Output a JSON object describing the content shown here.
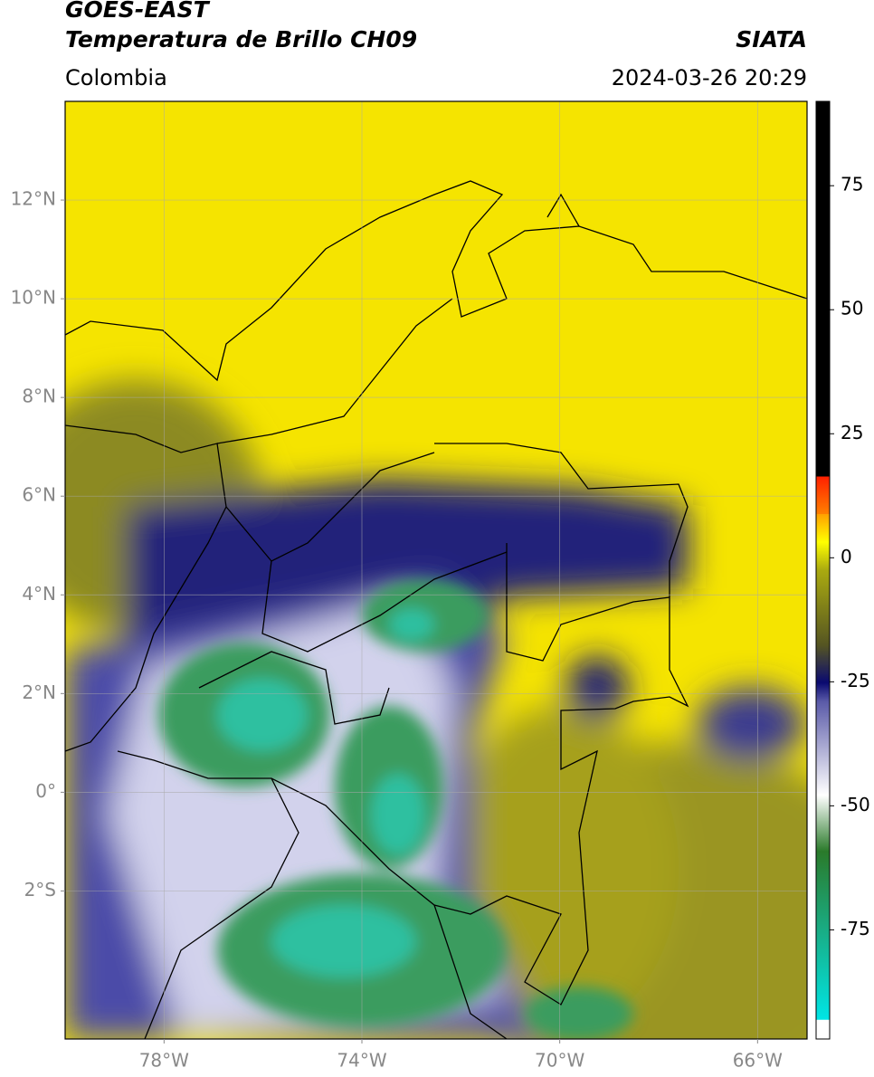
{
  "header": {
    "title": "GOES-EAST",
    "subtitle": "Temperatura de Brillo CH09",
    "source": "SIATA",
    "region": "Colombia",
    "datetime": "2024-03-26 20:29"
  },
  "map": {
    "xlim": [
      -80,
      -65
    ],
    "ylim": [
      -5,
      14
    ],
    "xticks": [
      {
        "value": -78,
        "label": "78°W"
      },
      {
        "value": -74,
        "label": "74°W"
      },
      {
        "value": -70,
        "label": "70°W"
      },
      {
        "value": -66,
        "label": "66°W"
      }
    ],
    "yticks": [
      {
        "value": 12,
        "label": "12°N"
      },
      {
        "value": 10,
        "label": "10°N"
      },
      {
        "value": 8,
        "label": "8°N"
      },
      {
        "value": 6,
        "label": "6°N"
      },
      {
        "value": 4,
        "label": "4°N"
      },
      {
        "value": 2,
        "label": "2°N"
      },
      {
        "value": 0,
        "label": "0°"
      },
      {
        "value": -2,
        "label": "2°S"
      }
    ]
  },
  "colorbar": {
    "clim": [
      -97,
      92
    ],
    "ticks": [
      75,
      50,
      25,
      0,
      -25,
      -50,
      -75
    ]
  }
}
